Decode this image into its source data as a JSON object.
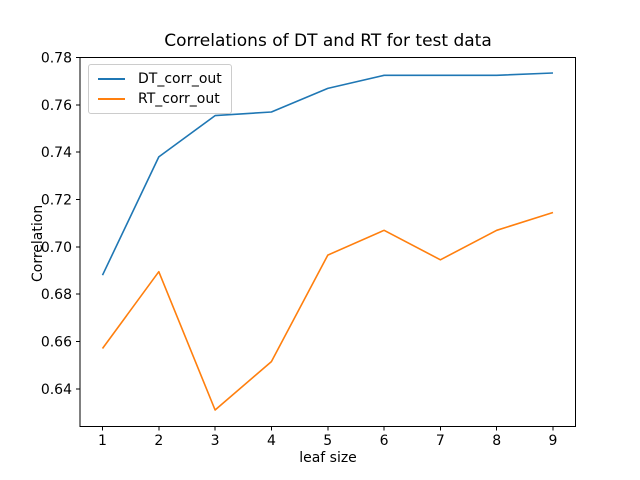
{
  "figure": {
    "background": "#ffffff",
    "axis_color": "#000000"
  },
  "chart_data": {
    "type": "line",
    "title": "Correlations of DT and RT for test data",
    "xlabel": "leaf size",
    "ylabel": "Correlation",
    "x": [
      1,
      2,
      3,
      4,
      5,
      6,
      7,
      8,
      9
    ],
    "series": [
      {
        "name": "DT_corr_out",
        "color": "#1f77b4",
        "values": [
          0.688,
          0.738,
          0.7555,
          0.757,
          0.767,
          0.7725,
          0.7725,
          0.7725,
          0.7735
        ]
      },
      {
        "name": "RT_corr_out",
        "color": "#ff7f0e",
        "values": [
          0.657,
          0.6895,
          0.631,
          0.6515,
          0.6965,
          0.707,
          0.6945,
          0.707,
          0.7145
        ]
      }
    ],
    "xlim": [
      0.6,
      9.4
    ],
    "ylim": [
      0.624,
      0.78
    ],
    "xticks": {
      "values": [
        1,
        2,
        3,
        4,
        5,
        6,
        7,
        8,
        9
      ],
      "labels": [
        "1",
        "2",
        "3",
        "4",
        "5",
        "6",
        "7",
        "8",
        "9"
      ]
    },
    "yticks": {
      "values": [
        0.64,
        0.66,
        0.68,
        0.7,
        0.72,
        0.74,
        0.76,
        0.78
      ],
      "labels": [
        "0.64",
        "0.66",
        "0.68",
        "0.70",
        "0.72",
        "0.74",
        "0.76",
        "0.78"
      ]
    },
    "grid": false,
    "legend": {
      "position": "upper left",
      "entries": [
        "DT_corr_out",
        "RT_corr_out"
      ]
    }
  }
}
